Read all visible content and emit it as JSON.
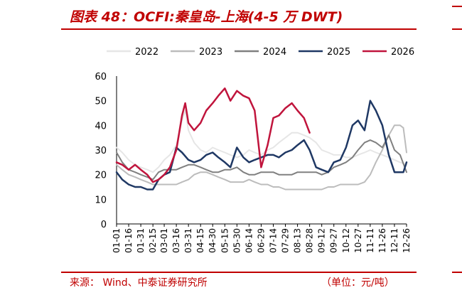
{
  "title": "图表 48：OCFI:秦皇岛-上海(4-5 万 DWT)",
  "footer": {
    "source": "来源：  Wind、中泰证券研究所",
    "unit": "（单位：元/吨）"
  },
  "colors": {
    "brand_red": "#c00000",
    "s2022": "#e6e6e6",
    "s2023": "#bcbcbc",
    "s2024": "#808080",
    "s2025": "#1f3864",
    "s2026": "#c0143c"
  },
  "chart_data": {
    "type": "line",
    "title": "OCFI:秦皇岛-上海(4-5 万 DWT)",
    "xlabel": "",
    "ylabel": "",
    "ylim": [
      0,
      60
    ],
    "yticks": [
      0,
      10,
      20,
      30,
      40,
      50,
      60
    ],
    "grid": false,
    "legend_position": "top",
    "x_tick_labels": [
      "01-01",
      "01-16",
      "01-31",
      "02-15",
      "03-01",
      "03-16",
      "03-31",
      "04-15",
      "04-30",
      "05-15",
      "05-30",
      "06-14",
      "06-29",
      "07-14",
      "07-29",
      "08-13",
      "08-28",
      "09-12",
      "09-27",
      "10-12",
      "10-27",
      "11-11",
      "11-26",
      "12-11",
      "12-26"
    ],
    "series": [
      {
        "name": "2022",
        "points": [
          [
            "01-01",
            31
          ],
          [
            "01-08",
            29
          ],
          [
            "01-16",
            26
          ],
          [
            "01-24",
            24
          ],
          [
            "01-31",
            23
          ],
          [
            "02-08",
            22
          ],
          [
            "02-15",
            21
          ],
          [
            "02-22",
            23
          ],
          [
            "03-01",
            26
          ],
          [
            "03-08",
            28
          ],
          [
            "03-16",
            32
          ],
          [
            "03-23",
            42
          ],
          [
            "03-27",
            46
          ],
          [
            "03-31",
            38
          ],
          [
            "04-07",
            33
          ],
          [
            "04-15",
            30
          ],
          [
            "04-22",
            29
          ],
          [
            "04-30",
            31
          ],
          [
            "05-07",
            30
          ],
          [
            "05-15",
            29
          ],
          [
            "05-22",
            28
          ],
          [
            "05-30",
            27
          ],
          [
            "06-07",
            28
          ],
          [
            "06-14",
            30
          ],
          [
            "06-21",
            29
          ],
          [
            "06-29",
            28
          ],
          [
            "07-07",
            30
          ],
          [
            "07-14",
            31
          ],
          [
            "07-21",
            33
          ],
          [
            "07-29",
            35
          ],
          [
            "08-06",
            37
          ],
          [
            "08-13",
            37
          ],
          [
            "08-21",
            36
          ],
          [
            "08-28",
            35
          ],
          [
            "09-05",
            33
          ],
          [
            "09-12",
            30
          ],
          [
            "09-20",
            29
          ],
          [
            "09-27",
            28
          ],
          [
            "10-05",
            28
          ],
          [
            "10-12",
            27
          ],
          [
            "10-20",
            27
          ],
          [
            "10-27",
            28
          ],
          [
            "11-04",
            29
          ],
          [
            "11-11",
            30
          ],
          [
            "11-18",
            29
          ],
          [
            "11-26",
            28
          ],
          [
            "12-04",
            27
          ],
          [
            "12-11",
            26
          ],
          [
            "12-18",
            25
          ],
          [
            "12-26",
            24
          ]
        ]
      },
      {
        "name": "2023",
        "points": [
          [
            "01-01",
            24
          ],
          [
            "01-08",
            22
          ],
          [
            "01-16",
            20
          ],
          [
            "01-24",
            19
          ],
          [
            "01-31",
            18
          ],
          [
            "02-08",
            17
          ],
          [
            "02-15",
            16
          ],
          [
            "02-22",
            16
          ],
          [
            "03-01",
            16
          ],
          [
            "03-08",
            16
          ],
          [
            "03-16",
            16
          ],
          [
            "03-23",
            17
          ],
          [
            "03-31",
            18
          ],
          [
            "04-07",
            20
          ],
          [
            "04-15",
            21
          ],
          [
            "04-22",
            21
          ],
          [
            "04-30",
            20
          ],
          [
            "05-07",
            19
          ],
          [
            "05-15",
            18
          ],
          [
            "05-22",
            17
          ],
          [
            "05-30",
            17
          ],
          [
            "06-07",
            17
          ],
          [
            "06-14",
            18
          ],
          [
            "06-21",
            17
          ],
          [
            "06-29",
            16
          ],
          [
            "07-07",
            16
          ],
          [
            "07-14",
            15
          ],
          [
            "07-21",
            15
          ],
          [
            "07-29",
            14
          ],
          [
            "08-06",
            14
          ],
          [
            "08-13",
            14
          ],
          [
            "08-21",
            14
          ],
          [
            "08-28",
            14
          ],
          [
            "09-05",
            14
          ],
          [
            "09-12",
            14
          ],
          [
            "09-20",
            15
          ],
          [
            "09-27",
            15
          ],
          [
            "10-05",
            16
          ],
          [
            "10-12",
            16
          ],
          [
            "10-20",
            16
          ],
          [
            "10-27",
            16
          ],
          [
            "11-04",
            17
          ],
          [
            "11-11",
            20
          ],
          [
            "11-18",
            25
          ],
          [
            "11-26",
            30
          ],
          [
            "12-04",
            36
          ],
          [
            "12-11",
            40
          ],
          [
            "12-18",
            40
          ],
          [
            "12-22",
            39
          ],
          [
            "12-26",
            29
          ]
        ]
      },
      {
        "name": "2024",
        "points": [
          [
            "01-01",
            29
          ],
          [
            "01-08",
            25
          ],
          [
            "01-16",
            22
          ],
          [
            "01-24",
            21
          ],
          [
            "01-31",
            20
          ],
          [
            "02-08",
            19
          ],
          [
            "02-15",
            18
          ],
          [
            "02-22",
            21
          ],
          [
            "03-01",
            22
          ],
          [
            "03-08",
            22
          ],
          [
            "03-16",
            22
          ],
          [
            "03-23",
            23
          ],
          [
            "03-31",
            24
          ],
          [
            "04-07",
            24
          ],
          [
            "04-15",
            23
          ],
          [
            "04-22",
            22
          ],
          [
            "04-30",
            21
          ],
          [
            "05-07",
            21
          ],
          [
            "05-15",
            22
          ],
          [
            "05-22",
            22
          ],
          [
            "05-30",
            23
          ],
          [
            "06-07",
            21
          ],
          [
            "06-14",
            20
          ],
          [
            "06-21",
            20
          ],
          [
            "06-29",
            21
          ],
          [
            "07-07",
            21
          ],
          [
            "07-14",
            21
          ],
          [
            "07-21",
            20
          ],
          [
            "07-29",
            20
          ],
          [
            "08-06",
            20
          ],
          [
            "08-13",
            21
          ],
          [
            "08-21",
            21
          ],
          [
            "08-28",
            21
          ],
          [
            "09-05",
            21
          ],
          [
            "09-12",
            20
          ],
          [
            "09-20",
            21
          ],
          [
            "09-27",
            23
          ],
          [
            "10-05",
            24
          ],
          [
            "10-12",
            25
          ],
          [
            "10-20",
            27
          ],
          [
            "10-27",
            30
          ],
          [
            "11-04",
            33
          ],
          [
            "11-11",
            34
          ],
          [
            "11-18",
            33
          ],
          [
            "11-26",
            31
          ],
          [
            "12-04",
            36
          ],
          [
            "12-11",
            30
          ],
          [
            "12-18",
            28
          ],
          [
            "12-26",
            21
          ]
        ]
      },
      {
        "name": "2025",
        "points": [
          [
            "01-01",
            21
          ],
          [
            "01-08",
            18
          ],
          [
            "01-16",
            16
          ],
          [
            "01-24",
            15
          ],
          [
            "01-31",
            15
          ],
          [
            "02-08",
            14
          ],
          [
            "02-15",
            14
          ],
          [
            "02-22",
            18
          ],
          [
            "03-01",
            20
          ],
          [
            "03-08",
            21
          ],
          [
            "03-16",
            31
          ],
          [
            "03-23",
            29
          ],
          [
            "03-31",
            26
          ],
          [
            "04-07",
            25
          ],
          [
            "04-15",
            26
          ],
          [
            "04-22",
            28
          ],
          [
            "04-30",
            29
          ],
          [
            "05-07",
            27
          ],
          [
            "05-15",
            25
          ],
          [
            "05-22",
            23
          ],
          [
            "05-30",
            31
          ],
          [
            "06-07",
            27
          ],
          [
            "06-14",
            25
          ],
          [
            "06-21",
            26
          ],
          [
            "06-29",
            27
          ],
          [
            "07-07",
            28
          ],
          [
            "07-14",
            28
          ],
          [
            "07-21",
            27
          ],
          [
            "07-29",
            29
          ],
          [
            "08-06",
            30
          ],
          [
            "08-13",
            32
          ],
          [
            "08-21",
            34
          ],
          [
            "08-28",
            30
          ],
          [
            "09-05",
            23
          ],
          [
            "09-12",
            22
          ],
          [
            "09-20",
            21
          ],
          [
            "09-27",
            25
          ],
          [
            "10-05",
            26
          ],
          [
            "10-12",
            31
          ],
          [
            "10-20",
            40
          ],
          [
            "10-27",
            42
          ],
          [
            "11-04",
            38
          ],
          [
            "11-11",
            50
          ],
          [
            "11-18",
            46
          ],
          [
            "11-26",
            40
          ],
          [
            "12-04",
            28
          ],
          [
            "12-11",
            21
          ],
          [
            "12-18",
            21
          ],
          [
            "12-22",
            21
          ],
          [
            "12-26",
            25
          ]
        ]
      },
      {
        "name": "2026",
        "points": [
          [
            "01-01",
            25
          ],
          [
            "01-08",
            24
          ],
          [
            "01-16",
            22
          ],
          [
            "01-24",
            24
          ],
          [
            "01-31",
            22
          ],
          [
            "02-08",
            20
          ],
          [
            "02-15",
            17
          ],
          [
            "02-22",
            18
          ],
          [
            "03-01",
            20
          ],
          [
            "03-08",
            23
          ],
          [
            "03-16",
            30
          ],
          [
            "03-23",
            44
          ],
          [
            "03-27",
            49
          ],
          [
            "03-31",
            41
          ],
          [
            "04-07",
            38
          ],
          [
            "04-15",
            41
          ],
          [
            "04-22",
            46
          ],
          [
            "04-30",
            49
          ],
          [
            "05-07",
            52
          ],
          [
            "05-15",
            55
          ],
          [
            "05-22",
            50
          ],
          [
            "05-30",
            54
          ],
          [
            "06-07",
            52
          ],
          [
            "06-14",
            51
          ],
          [
            "06-21",
            46
          ],
          [
            "06-29",
            23
          ],
          [
            "07-07",
            32
          ],
          [
            "07-14",
            43
          ],
          [
            "07-21",
            44
          ],
          [
            "07-29",
            47
          ],
          [
            "08-06",
            49
          ],
          [
            "08-13",
            46
          ],
          [
            "08-21",
            43
          ],
          [
            "08-28",
            37
          ]
        ]
      }
    ]
  }
}
